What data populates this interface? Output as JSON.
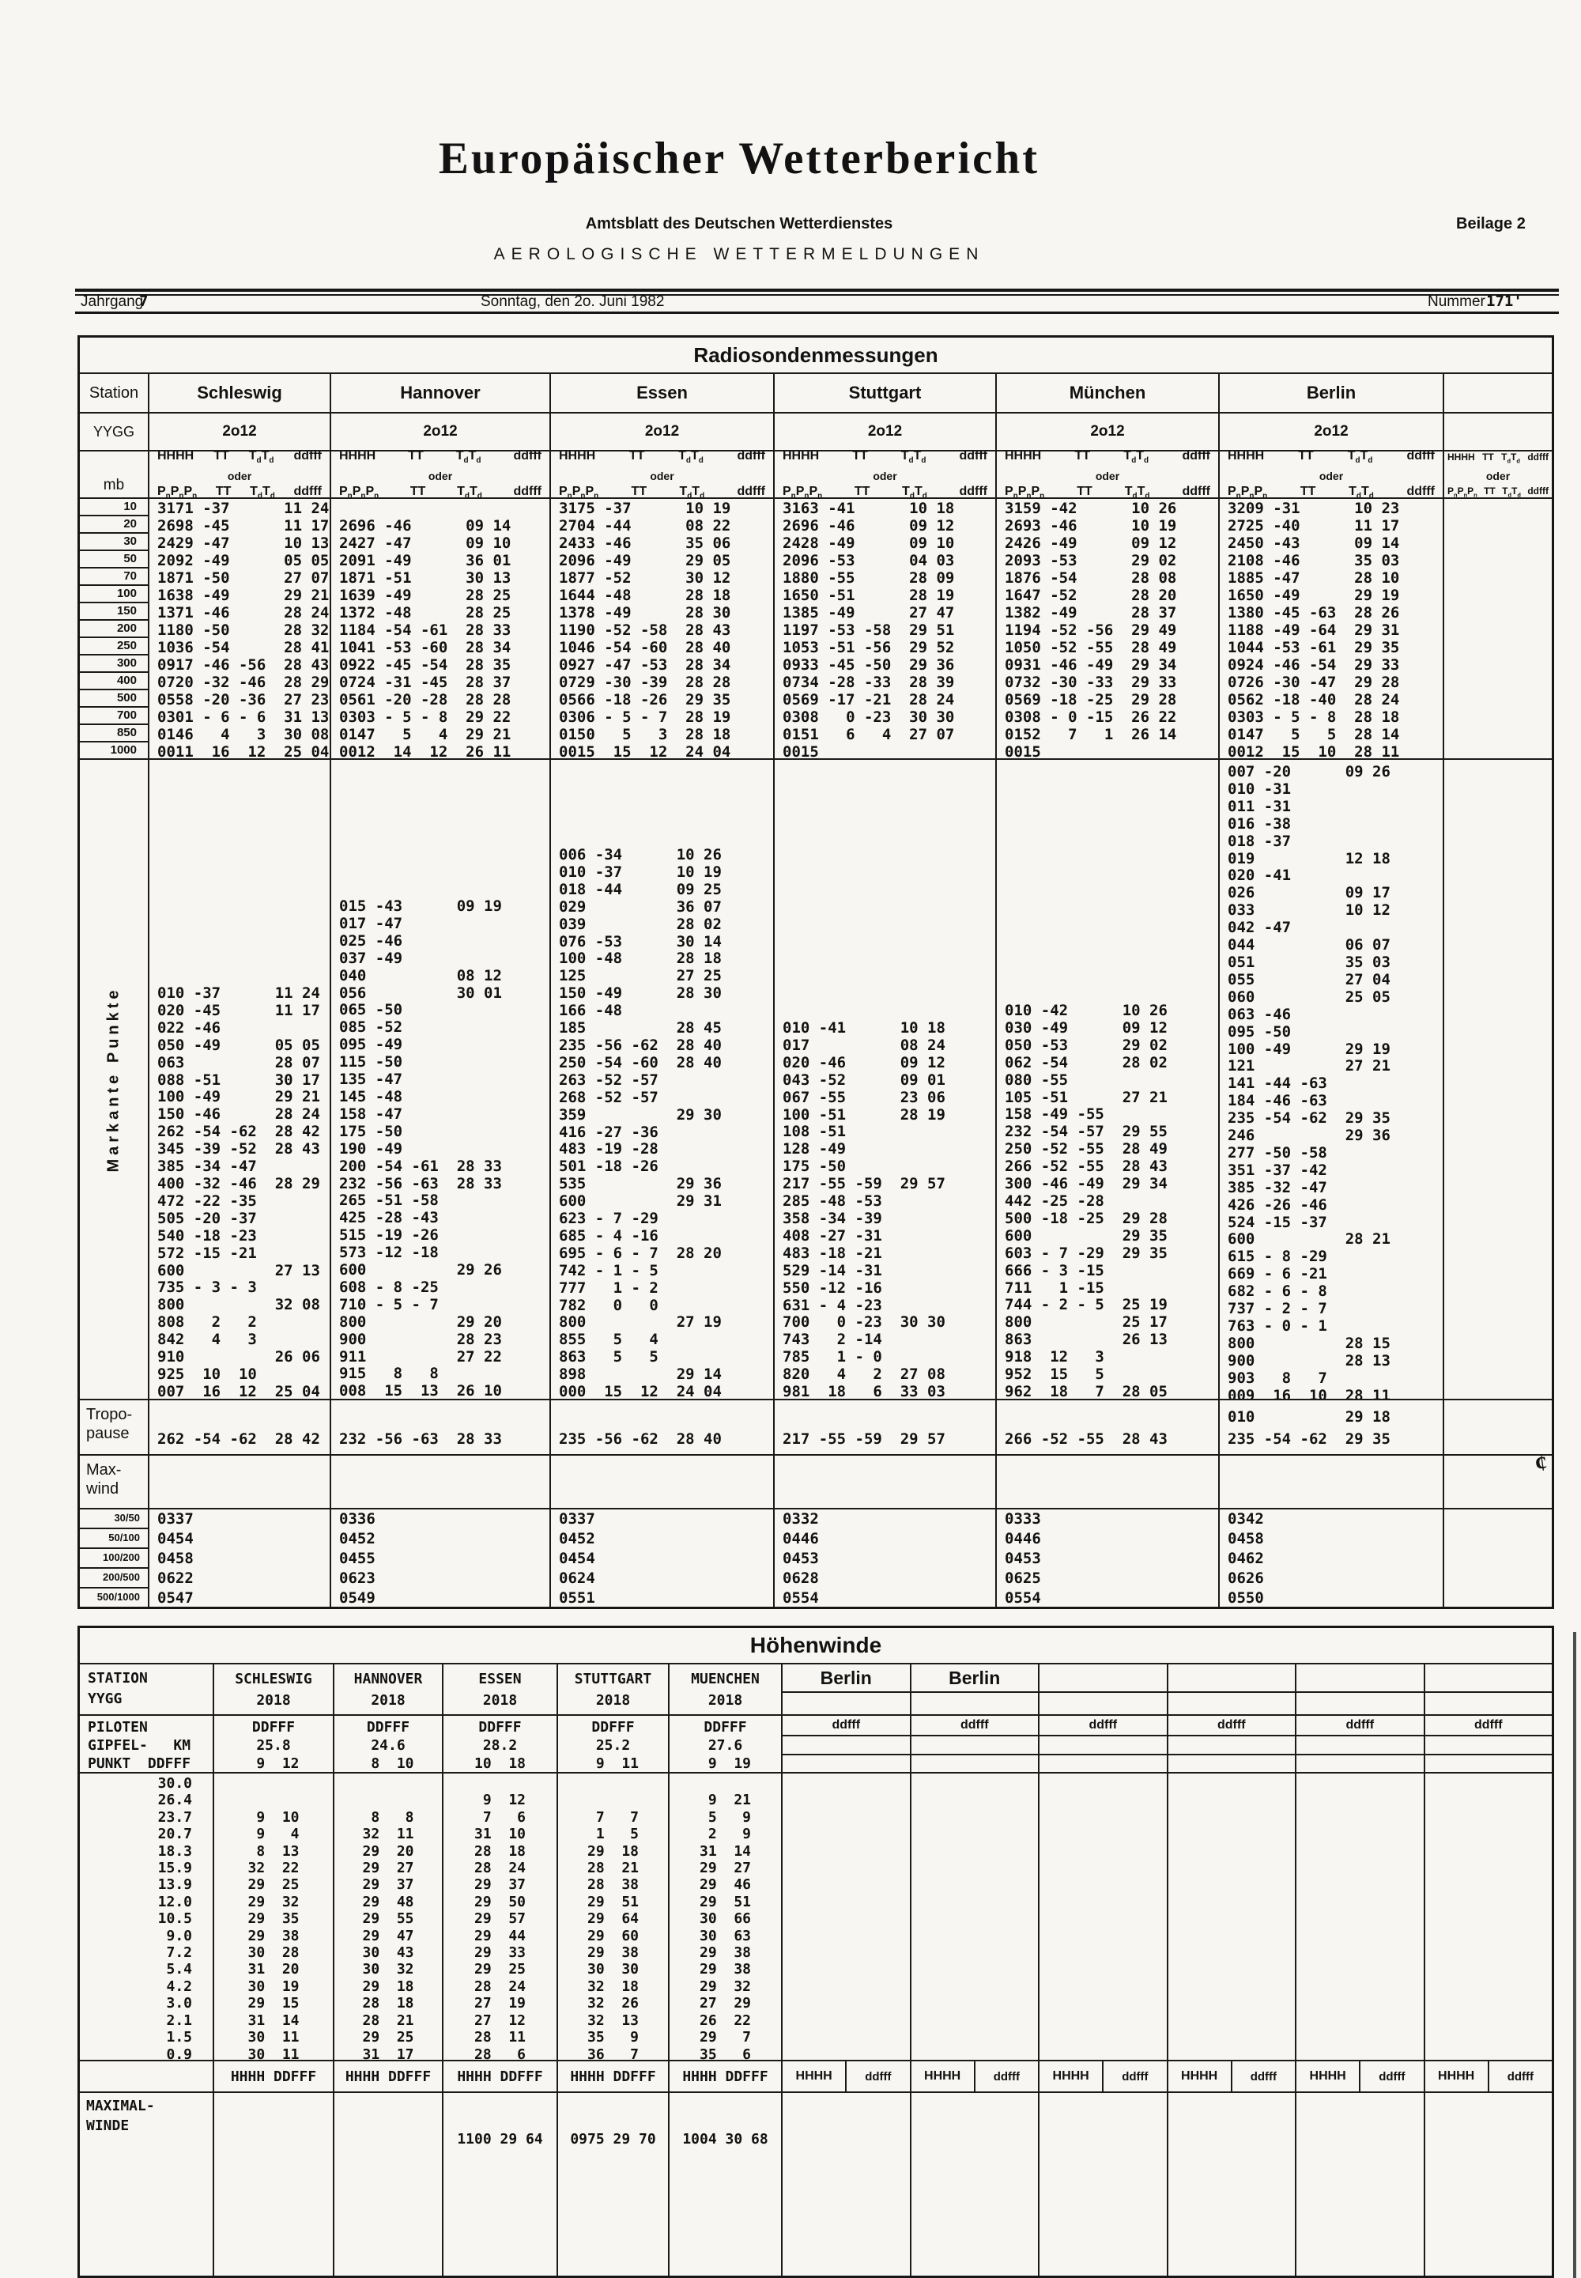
{
  "masthead": {
    "title": "Europäischer Wetterbericht",
    "subtitle": "Amtsblatt des Deutschen Wetterdienstes",
    "beilage": "Beilage 2",
    "aerologische": "AEROLOGISCHE WETTERMELDUNGEN",
    "jahrgang_label": "Jahrgang",
    "jahrgang": "7",
    "date": "Sonntag, den 2o. Juni 1982",
    "nummer_label": "Nummer",
    "nummer": "171",
    "nummer_tick": "'"
  },
  "radiosonde": {
    "title": "Radiosondenmessungen",
    "station_label": "Station",
    "yygg_label": "YYGG",
    "yygg_value": "2o12",
    "mb_label": "mb",
    "colhead": {
      "h": "HHHH",
      "tt": "TT",
      "td": "T_dT_d",
      "dd": "ddfff",
      "oder": "oder",
      "p": "P_nP_nP_n"
    },
    "mb_levels": [
      "10",
      "20",
      "30",
      "50",
      "70",
      "100",
      "150",
      "200",
      "250",
      "300",
      "400",
      "500",
      "700",
      "850",
      "1000"
    ],
    "markante_label": "Markante Punkte",
    "tropopause_label": [
      "Tropo-",
      "pause"
    ],
    "maxwind_label": [
      "Max-",
      "wind"
    ],
    "ratio_labels": [
      "30/50",
      "50/100",
      "100/200",
      "200/500",
      "500/1000"
    ],
    "stations": {
      "schleswig": {
        "name": "Schleswig",
        "pressure": [
          "3171 -37      11 24",
          "2698 -45      11 17",
          "2429 -47      10 13",
          "2092 -49      05 05",
          "1871 -50      27 07",
          "1638 -49      29 21",
          "1371 -46      28 24",
          "1180 -50      28 32",
          "1036 -54      28 41",
          "0917 -46 -56  28 43",
          "0720 -32 -46  28 29",
          "0558 -20 -36  27 23",
          "0301 - 6 - 6  31 13",
          "0146   4   3  30 08",
          "0011  16  12  25 04"
        ],
        "markante": [
          "010 -37      11 24",
          "020 -45      11 17",
          "022 -46",
          "050 -49      05 05",
          "063          28 07",
          "088 -51      30 17",
          "100 -49      29 21",
          "150 -46      28 24",
          "262 -54 -62  28 42",
          "345 -39 -52  28 43",
          "385 -34 -47",
          "400 -32 -46  28 29",
          "472 -22 -35",
          "505 -20 -37",
          "540 -18 -23",
          "572 -15 -21",
          "600          27 13",
          "735 - 3 - 3",
          "800          32 08",
          "808   2   2",
          "842   4   3",
          "910          26 06",
          "925  10  10",
          "007  16  12  25 04"
        ],
        "tropopause": [
          "",
          "262 -54 -62  28 42"
        ],
        "ratios": [
          "0337",
          "0454",
          "0458",
          "0622",
          "0547"
        ]
      },
      "hannover": {
        "name": "Hannover",
        "pressure": [
          "",
          "2696 -46      09 14",
          "2427 -47      09 10",
          "2091 -49      36 01",
          "1871 -51      30 13",
          "1639 -49      28 25",
          "1372 -48      28 25",
          "1184 -54 -61  28 33",
          "1041 -53 -60  28 34",
          "0922 -45 -54  28 35",
          "0724 -31 -45  28 37",
          "0561 -20 -28  28 28",
          "0303 - 5 - 8  29 22",
          "0147   5   4  29 21",
          "0012  14  12  26 11"
        ],
        "markante": [
          "015 -43      09 19",
          "017 -47",
          "025 -46",
          "037 -49",
          "040          08 12",
          "056          30 01",
          "065 -50",
          "085 -52",
          "095 -49",
          "115 -50",
          "135 -47",
          "145 -48",
          "158 -47",
          "175 -50",
          "190 -49",
          "200 -54 -61  28 33",
          "232 -56 -63  28 33",
          "265 -51 -58",
          "425 -28 -43",
          "515 -19 -26",
          "573 -12 -18",
          "600          29 26",
          "608 - 8 -25",
          "710 - 5 - 7",
          "800          29 20",
          "900          28 23",
          "911          27 22",
          "915   8   8",
          "008  15  13  26 10"
        ],
        "tropopause": [
          "",
          "232 -56 -63  28 33"
        ],
        "ratios": [
          "0336",
          "0452",
          "0455",
          "0623",
          "0549"
        ]
      },
      "essen": {
        "name": "Essen",
        "pressure": [
          "3175 -37      10 19",
          "2704 -44      08 22",
          "2433 -46      35 06",
          "2096 -49      29 05",
          "1877 -52      30 12",
          "1644 -48      28 18",
          "1378 -49      28 30",
          "1190 -52 -58  28 43",
          "1046 -54 -60  28 40",
          "0927 -47 -53  28 34",
          "0729 -30 -39  28 28",
          "0566 -18 -26  29 35",
          "0306 - 5 - 7  28 19",
          "0150   5   3  28 18",
          "0015  15  12  24 04"
        ],
        "markante": [
          "006 -34      10 26",
          "010 -37      10 19",
          "018 -44      09 25",
          "029          36 07",
          "039          28 02",
          "076 -53      30 14",
          "100 -48      28 18",
          "125          27 25",
          "150 -49      28 30",
          "166 -48",
          "185          28 45",
          "235 -56 -62  28 40",
          "250 -54 -60  28 40",
          "263 -52 -57",
          "268 -52 -57",
          "359          29 30",
          "416 -27 -36",
          "483 -19 -28",
          "501 -18 -26",
          "535          29 36",
          "600          29 31",
          "623 - 7 -29",
          "685 - 4 -16",
          "695 - 6 - 7  28 20",
          "742 - 1 - 5",
          "777   1 - 2",
          "782   0   0",
          "800          27 19",
          "855   5   4",
          "863   5   5",
          "898          29 14",
          "000  15  12  24 04"
        ],
        "tropopause": [
          "",
          "235 -56 -62  28 40"
        ],
        "ratios": [
          "0337",
          "0452",
          "0454",
          "0624",
          "0551"
        ]
      },
      "stuttgart": {
        "name": "Stuttgart",
        "pressure": [
          "3163 -41      10 18",
          "2696 -46      09 12",
          "2428 -49      09 10",
          "2096 -53      04 03",
          "1880 -55      28 09",
          "1650 -51      28 19",
          "1385 -49      27 47",
          "1197 -53 -58  29 51",
          "1053 -51 -56  29 52",
          "0933 -45 -50  29 36",
          "0734 -28 -33  28 39",
          "0569 -17 -21  28 24",
          "0308   0 -23  30 30",
          "0151   6   4  27 07",
          "0015"
        ],
        "markante": [
          "010 -41      10 18",
          "017          08 24",
          "020 -46      09 12",
          "043 -52      09 01",
          "067 -55      23 06",
          "100 -51      28 19",
          "108 -51",
          "128 -49",
          "175 -50",
          "217 -55 -59  29 57",
          "285 -48 -53",
          "358 -34 -39",
          "408 -27 -31",
          "483 -18 -21",
          "529 -14 -31",
          "550 -12 -16",
          "631 - 4 -23",
          "700   0 -23  30 30",
          "743   2 -14",
          "785   1 - 0",
          "820   4   2  27 08",
          "981  18   6  33 03"
        ],
        "tropopause": [
          "",
          "217 -55 -59  29 57"
        ],
        "ratios": [
          "0332",
          "0446",
          "0453",
          "0628",
          "0554"
        ]
      },
      "muenchen": {
        "name": "München",
        "pressure": [
          "3159 -42      10 26",
          "2693 -46      10 19",
          "2426 -49      09 12",
          "2093 -53      29 02",
          "1876 -54      28 08",
          "1647 -52      28 20",
          "1382 -49      28 37",
          "1194 -52 -56  29 49",
          "1050 -52 -55  28 49",
          "0931 -46 -49  29 34",
          "0732 -30 -33  29 33",
          "0569 -18 -25  29 28",
          "0308 - 0 -15  26 22",
          "0152   7   1  26 14",
          "0015"
        ],
        "markante": [
          "010 -42      10 26",
          "030 -49      09 12",
          "050 -53      29 02",
          "062 -54      28 02",
          "080 -55",
          "105 -51      27 21",
          "158 -49 -55",
          "232 -54 -57  29 55",
          "250 -52 -55  28 49",
          "266 -52 -55  28 43",
          "300 -46 -49  29 34",
          "442 -25 -28",
          "500 -18 -25  29 28",
          "600          29 35",
          "603 - 7 -29  29 35",
          "666 - 3 -15",
          "711   1 -15",
          "744 - 2 - 5  25 19",
          "800          25 17",
          "863          26 13",
          "918  12   3",
          "952  15   5",
          "962  18   7  28 05"
        ],
        "tropopause": [
          "",
          "266 -52 -55  28 43"
        ],
        "ratios": [
          "0333",
          "0446",
          "0453",
          "0625",
          "0554"
        ]
      },
      "berlin": {
        "name": "Berlin",
        "pressure": [
          "3209 -31      10 23",
          "2725 -40      11 17",
          "2450 -43      09 14",
          "2108 -46      35 03",
          "1885 -47      28 10",
          "1650 -49      29 19",
          "1380 -45 -63  28 26",
          "1188 -49 -64  29 31",
          "1044 -53 -61  29 35",
          "0924 -46 -54  29 33",
          "0726 -30 -47  29 28",
          "0562 -18 -40  28 24",
          "0303 - 5 - 8  28 18",
          "0147   5   5  28 14",
          "0012  15  10  28 11"
        ],
        "markante": [
          "007 -20      09 26",
          "010 -31",
          "011 -31",
          "016 -38",
          "018 -37",
          "019          12 18",
          "020 -41",
          "026          09 17",
          "033          10 12",
          "042 -47",
          "044          06 07",
          "051          35 03",
          "055          27 04",
          "060          25 05",
          "063 -46",
          "095 -50",
          "100 -49      29 19",
          "121          27 21",
          "141 -44 -63",
          "184 -46 -63",
          "235 -54 -62  29 35",
          "246          29 36",
          "277 -50 -58",
          "351 -37 -42",
          "385 -32 -47",
          "426 -26 -46",
          "524 -15 -37",
          "600          28 21",
          "615 - 8 -29",
          "669 - 6 -21",
          "682 - 6 - 8",
          "737 - 2 - 7",
          "763 - 0 - 1",
          "800          28 15",
          "900          28 13",
          "903   8   7",
          "009  16  10  28 11"
        ],
        "tropopause": [
          "010          29 18",
          "235 -54 -62  29 35"
        ],
        "ratios": [
          "0342",
          "0458",
          "0462",
          "0626",
          "0550"
        ]
      }
    }
  },
  "hoehenwinde": {
    "title": "Höhenwinde",
    "station_block": [
      "STATION",
      "YYGG"
    ],
    "piloten_block": [
      "PILOTEN",
      "GIPFEL-   KM",
      "PUNKT  DDFFF"
    ],
    "maximal_block": [
      "MAXIMAL-",
      "WINDE"
    ],
    "footer_label": "HHHH  DDFFF",
    "km_values": [
      "30.0",
      "26.4",
      "23.7",
      "20.7",
      "18.3",
      "15.9",
      "13.9",
      "12.0",
      "10.5",
      "9.0",
      "7.2",
      "5.4",
      "4.2",
      "3.0",
      "2.1",
      "1.5",
      "0.9"
    ],
    "right": {
      "berlin": "Berlin",
      "ddfff": "ddfff",
      "hhhh": "HHHH"
    },
    "stations": {
      "schleswig": {
        "header_block": [
          "SCHLESWIG",
          "2018"
        ],
        "pilot_block": [
          "DDFFF",
          "25.8",
          " 9  12"
        ],
        "winds": [
          "",
          "",
          " 9  10",
          " 9   4",
          " 8  13",
          "32  22",
          "29  25",
          "29  32",
          "29  35",
          "29  38",
          "30  28",
          "31  20",
          "30  19",
          "29  15",
          "31  14",
          "30  11",
          "30  11"
        ],
        "maximal": ""
      },
      "hannover": {
        "header_block": [
          "HANNOVER",
          "2018"
        ],
        "pilot_block": [
          "DDFFF",
          "24.6",
          " 8  10"
        ],
        "winds": [
          "",
          "",
          " 8   8",
          "32  11",
          "29  20",
          "29  27",
          "29  37",
          "29  48",
          "29  55",
          "29  47",
          "30  43",
          "30  32",
          "29  18",
          "28  18",
          "28  21",
          "29  25",
          "31  17"
        ],
        "maximal": ""
      },
      "essen": {
        "header_block": [
          "ESSEN",
          "2018"
        ],
        "pilot_block": [
          "DDFFF",
          "28.2",
          "10  18"
        ],
        "winds": [
          "",
          " 9  12",
          " 7   6",
          "31  10",
          "28  18",
          "28  24",
          "29  37",
          "29  50",
          "29  57",
          "29  44",
          "29  33",
          "29  25",
          "28  24",
          "27  19",
          "27  12",
          "28  11",
          "28   6"
        ],
        "maximal": "1100 29  64"
      },
      "stuttgart": {
        "header_block": [
          "STUTTGART",
          "2018"
        ],
        "pilot_block": [
          "DDFFF",
          "25.2",
          " 9  11"
        ],
        "winds": [
          "",
          "",
          " 7   7",
          " 1   5",
          "29  18",
          "28  21",
          "28  38",
          "29  51",
          "29  64",
          "29  60",
          "29  38",
          "30  30",
          "32  18",
          "32  26",
          "32  13",
          "35   9",
          "36   7"
        ],
        "maximal": "0975 29  70"
      },
      "muenchen": {
        "header_block": [
          "MUENCHEN",
          "2018"
        ],
        "pilot_block": [
          "DDFFF",
          "27.6",
          " 9  19"
        ],
        "winds": [
          "",
          " 9  21",
          " 5   9",
          " 2   9",
          "31  14",
          "29  27",
          "29  46",
          "29  51",
          "30  66",
          "30  63",
          "29  38",
          "29  38",
          "29  32",
          "27  29",
          "26  22",
          "29   7",
          "35   6"
        ],
        "maximal": "1004 30  68"
      }
    }
  },
  "artifacts": {
    "cent_mark": "¢"
  }
}
